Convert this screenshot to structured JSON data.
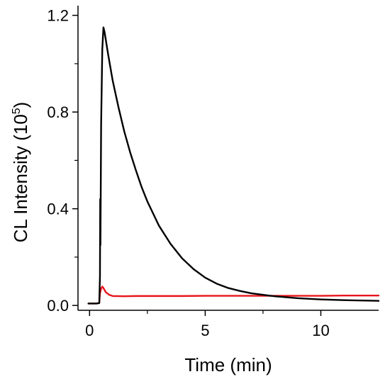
{
  "chart_data": {
    "type": "line",
    "xlabel": "Time (min)",
    "ylabel_main": "CL Intensity (10",
    "ylabel_exp": "5",
    "ylabel_close": ")",
    "xlim": [
      -0.5,
      12.5
    ],
    "ylim": [
      -0.02,
      1.24
    ],
    "x_ticks": [
      0,
      5,
      10
    ],
    "x_tick_labels": [
      "0",
      "5",
      "10"
    ],
    "y_ticks": [
      0.0,
      0.4,
      0.8,
      1.2
    ],
    "y_tick_labels": [
      "0.0",
      "0.4",
      "0.8",
      "1.2"
    ],
    "grid": false,
    "series": [
      {
        "color": "#000000",
        "points": [
          [
            -0.05,
            0.008
          ],
          [
            0.3,
            0.008
          ],
          [
            0.42,
            0.01
          ],
          [
            0.45,
            0.12
          ],
          [
            0.46,
            0.44
          ],
          [
            0.47,
            0.25
          ],
          [
            0.5,
            0.75
          ],
          [
            0.55,
            1.06
          ],
          [
            0.6,
            1.15
          ],
          [
            0.65,
            1.13
          ],
          [
            0.7,
            1.1
          ],
          [
            0.8,
            1.04
          ],
          [
            1.0,
            0.93
          ],
          [
            1.25,
            0.82
          ],
          [
            1.5,
            0.72
          ],
          [
            1.75,
            0.635
          ],
          [
            2.0,
            0.56
          ],
          [
            2.25,
            0.49
          ],
          [
            2.5,
            0.43
          ],
          [
            2.75,
            0.38
          ],
          [
            3.0,
            0.33
          ],
          [
            3.5,
            0.255
          ],
          [
            4.0,
            0.195
          ],
          [
            4.5,
            0.15
          ],
          [
            5.0,
            0.115
          ],
          [
            5.5,
            0.09
          ],
          [
            6.0,
            0.072
          ],
          [
            6.5,
            0.06
          ],
          [
            7.0,
            0.05
          ],
          [
            8.0,
            0.038
          ],
          [
            9.0,
            0.03
          ],
          [
            10.0,
            0.025
          ],
          [
            11.0,
            0.022
          ],
          [
            12.0,
            0.02
          ],
          [
            12.5,
            0.019
          ]
        ]
      },
      {
        "color": "#e8151b",
        "points": [
          [
            -0.05,
            0.008
          ],
          [
            0.3,
            0.008
          ],
          [
            0.42,
            0.01
          ],
          [
            0.45,
            0.05
          ],
          [
            0.5,
            0.07
          ],
          [
            0.55,
            0.078
          ],
          [
            0.6,
            0.072
          ],
          [
            0.7,
            0.055
          ],
          [
            0.85,
            0.044
          ],
          [
            1.0,
            0.039
          ],
          [
            1.5,
            0.038
          ],
          [
            2.0,
            0.039
          ],
          [
            3.0,
            0.039
          ],
          [
            4.0,
            0.039
          ],
          [
            5.0,
            0.04
          ],
          [
            6.0,
            0.04
          ],
          [
            7.0,
            0.04
          ],
          [
            8.0,
            0.04
          ],
          [
            9.0,
            0.04
          ],
          [
            10.0,
            0.04
          ],
          [
            11.0,
            0.041
          ],
          [
            12.0,
            0.041
          ],
          [
            12.5,
            0.041
          ]
        ]
      }
    ]
  }
}
